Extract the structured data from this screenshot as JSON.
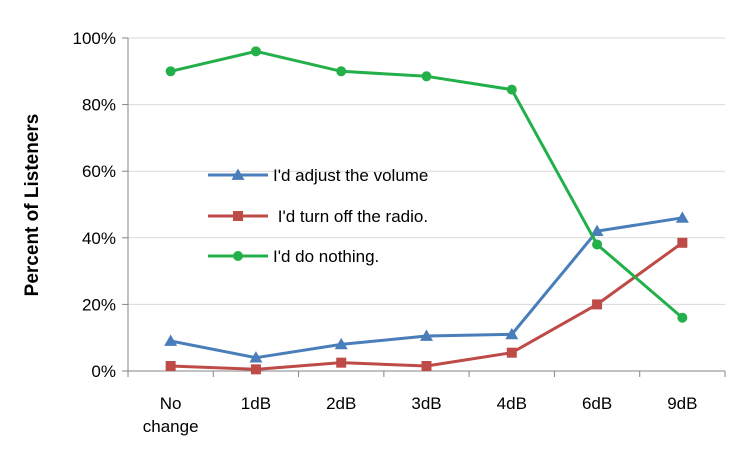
{
  "chart_data": {
    "type": "line",
    "title": "",
    "xlabel": "",
    "ylabel": "Percent of Listeners",
    "categories": [
      "No change",
      "1dB",
      "2dB",
      "3dB",
      "4dB",
      "6dB",
      "9dB"
    ],
    "ylim": [
      0,
      100
    ],
    "yticks": [
      0,
      20,
      40,
      60,
      80,
      100
    ],
    "ytick_labels": [
      "0%",
      "20%",
      "40%",
      "60%",
      "80%",
      "100%"
    ],
    "grid": "horizontal",
    "legend_position": "center-left",
    "series": [
      {
        "name": "I'd adjust the volume",
        "color": "#4a7ebb",
        "marker": "triangle",
        "values": [
          9,
          4,
          8,
          10.5,
          11,
          42,
          46
        ]
      },
      {
        "name": " I'd turn off the radio.",
        "color": "#be4b48",
        "marker": "square",
        "values": [
          1.5,
          0.5,
          2.5,
          1.5,
          5.5,
          20,
          38.5
        ]
      },
      {
        "name": "I'd do nothing.",
        "color": "#23b04a",
        "marker": "circle",
        "values": [
          90,
          96,
          90,
          88.5,
          84.5,
          38,
          16
        ]
      }
    ]
  }
}
